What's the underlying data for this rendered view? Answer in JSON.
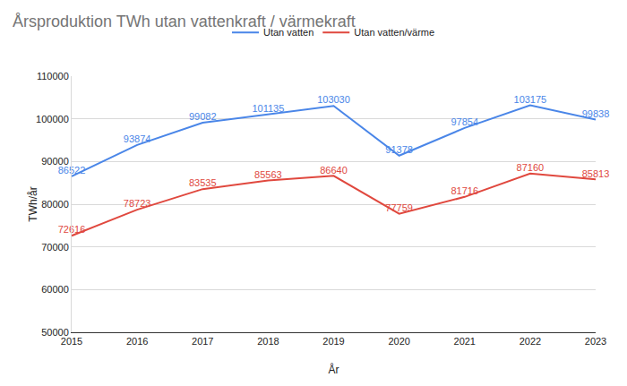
{
  "chart_data": {
    "type": "line",
    "title": "Årsproduktion TWh utan vattenkraft / värmekraft",
    "x_label": "År",
    "y_label": "TWh/år",
    "x": [
      2015,
      2016,
      2017,
      2018,
      2019,
      2020,
      2021,
      2022,
      2023
    ],
    "series": [
      {
        "name": "Utan vatten",
        "color": "#4a86e8",
        "values": [
          86522,
          93874,
          99082,
          101135,
          103030,
          91378,
          97854,
          103175,
          99838
        ]
      },
      {
        "name": "Utan vatten/värme",
        "color": "#e0483e",
        "values": [
          72616,
          78723,
          83535,
          85563,
          86640,
          77759,
          81716,
          87160,
          85813
        ]
      }
    ],
    "xlim": [
      2015,
      2023
    ],
    "xticks": [
      2015,
      2016,
      2017,
      2018,
      2019,
      2020,
      2021,
      2022,
      2023
    ],
    "ylim": [
      50000,
      110000
    ],
    "yticks": [
      50000,
      60000,
      70000,
      80000,
      90000,
      100000,
      110000
    ],
    "grid": true,
    "legend": "top",
    "data_labels": true
  }
}
